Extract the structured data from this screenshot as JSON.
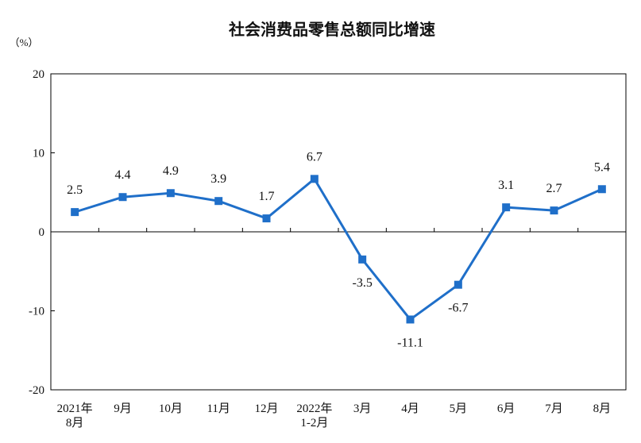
{
  "chart_data": {
    "type": "line",
    "title": "社会消费品零售总额同比增速",
    "unit_label": "（%）",
    "categories": [
      [
        "2021年",
        "8月"
      ],
      [
        "9月"
      ],
      [
        "10月"
      ],
      [
        "11月"
      ],
      [
        "12月"
      ],
      [
        "2022年",
        "1-2月"
      ],
      [
        "3月"
      ],
      [
        "4月"
      ],
      [
        "5月"
      ],
      [
        "6月"
      ],
      [
        "7月"
      ],
      [
        "8月"
      ]
    ],
    "values": [
      2.5,
      4.4,
      4.9,
      3.9,
      1.7,
      6.7,
      -3.5,
      -11.1,
      -6.7,
      3.1,
      2.7,
      5.4
    ],
    "data_labels": [
      "2.5",
      "4.4",
      "4.9",
      "3.9",
      "1.7",
      "6.7",
      "-3.5",
      "-11.1",
      "-6.7",
      "3.1",
      "2.7",
      "5.4"
    ],
    "yticks": [
      20,
      10,
      0,
      -10,
      -20
    ],
    "ylim": [
      -20,
      20
    ],
    "grid": false,
    "colors": {
      "line": "#1f6fc9",
      "axis": "#000000"
    }
  }
}
